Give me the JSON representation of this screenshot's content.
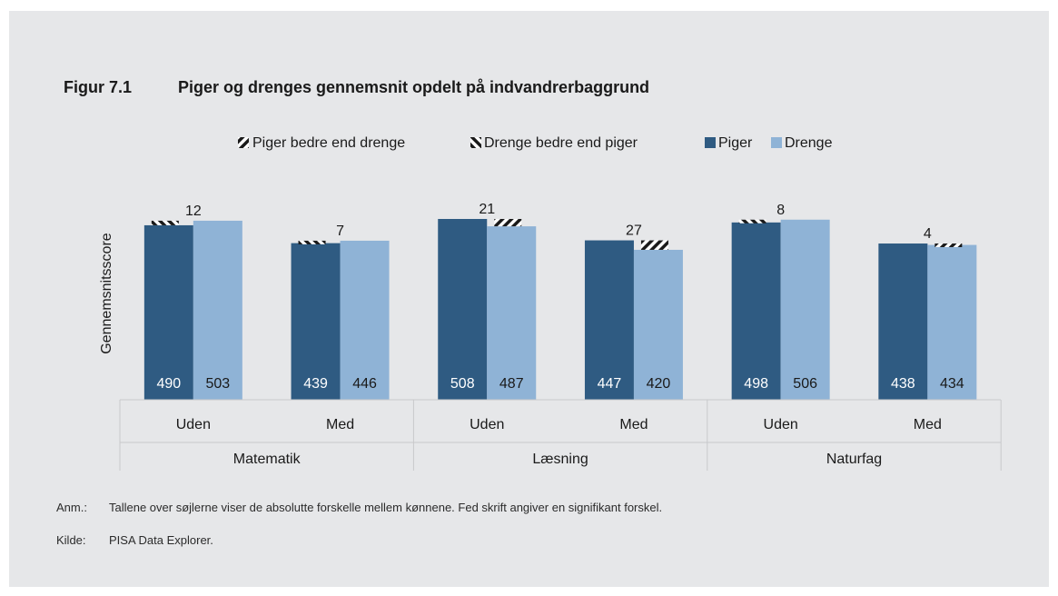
{
  "figure": {
    "number": "Figur 7.1",
    "title": "Piger og drenges gennemsnit opdelt på indvandrerbaggrund"
  },
  "notes": {
    "anm_label": "Anm.:",
    "anm_text": "Tallene over søjlerne viser de absolutte forskelle mellem kønnene. Fed skrift angiver en signifikant forskel.",
    "kilde_label": "Kilde:",
    "kilde_text": "PISA Data Explorer."
  },
  "colors": {
    "piger": "#2f5b82",
    "drenge": "#8fb3d6",
    "panel": "#e6e7e9",
    "hatch": "#1a1a1a"
  },
  "chart_data": {
    "type": "bar",
    "title": "",
    "xlabel": "",
    "ylabel": "Gennemsnitsscore",
    "legend": [
      "Piger bedre end drenge",
      "Drenge bedre end piger",
      "Piger",
      "Drenge"
    ],
    "legend_position": "top",
    "groups": [
      {
        "name": "Matematik",
        "categories": [
          "Uden",
          "Med"
        ]
      },
      {
        "name": "Læsning",
        "categories": [
          "Uden",
          "Med"
        ]
      },
      {
        "name": "Naturfag",
        "categories": [
          "Uden",
          "Med"
        ]
      }
    ],
    "categories": [
      "Uden",
      "Med",
      "Uden",
      "Med",
      "Uden",
      "Med"
    ],
    "series": [
      {
        "name": "Piger",
        "values": [
          490,
          439,
          508,
          447,
          498,
          438
        ]
      },
      {
        "name": "Drenge",
        "values": [
          503,
          446,
          487,
          420,
          506,
          434
        ]
      }
    ],
    "differences": [
      12,
      7,
      21,
      27,
      8,
      4
    ],
    "grid": false
  }
}
